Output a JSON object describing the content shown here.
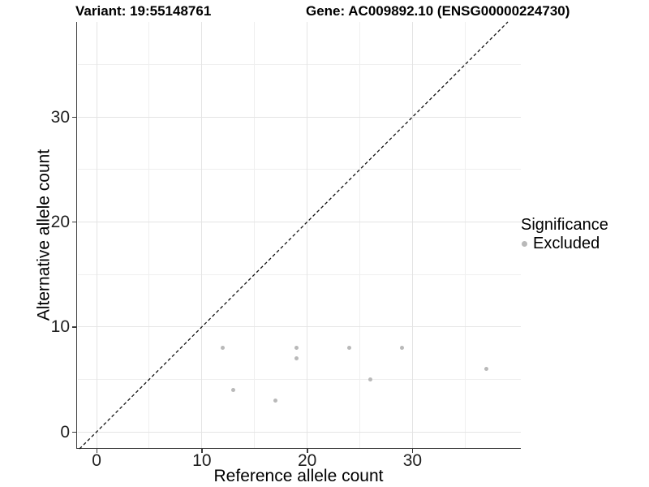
{
  "chart_data": {
    "type": "scatter",
    "title_left": "Variant: 19:55148761",
    "title_right": "Gene: AC009892.10 (ENSG00000224730)",
    "xlabel": "Reference allele count",
    "ylabel": "Alternative allele count",
    "xlim": [
      -1.93,
      40.29
    ],
    "ylim": [
      -1.62,
      39.06
    ],
    "x_major_ticks": [
      0,
      10,
      20,
      30
    ],
    "x_minor_ticks": [
      5,
      15,
      25,
      35
    ],
    "y_major_ticks": [
      0,
      10,
      20,
      30
    ],
    "y_minor_ticks": [
      5,
      15,
      25,
      35
    ],
    "grid": true,
    "background": "#ffffff",
    "identity_line": {
      "equation": "y = x",
      "style": "dashed",
      "color": "#111111"
    },
    "series": [
      {
        "name": "Excluded",
        "color": "#b9b9b9",
        "points": [
          [
            12,
            8
          ],
          [
            13,
            4
          ],
          [
            17,
            3
          ],
          [
            19,
            7
          ],
          [
            19,
            8
          ],
          [
            24,
            8
          ],
          [
            26,
            5
          ],
          [
            29,
            8
          ],
          [
            37,
            6
          ]
        ]
      }
    ],
    "legend": {
      "title": "Significance",
      "position": "right",
      "items": [
        {
          "label": "Excluded",
          "color": "#b9b9b9"
        }
      ]
    }
  }
}
